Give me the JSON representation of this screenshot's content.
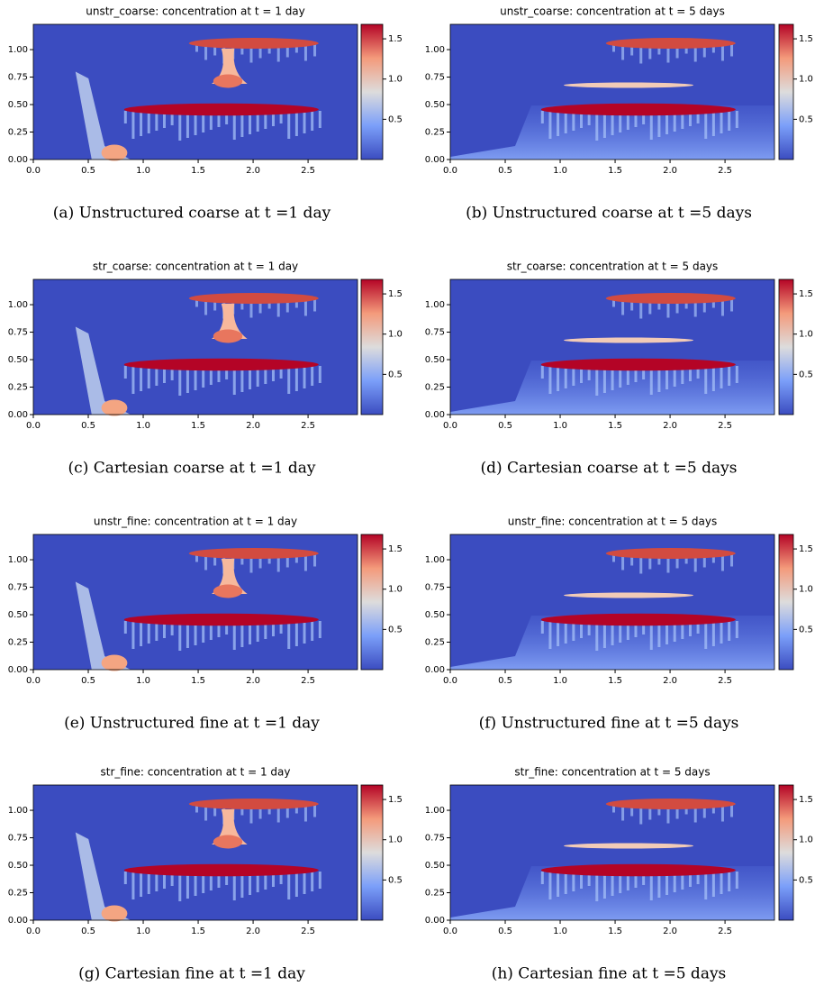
{
  "chart_data": [
    {
      "type": "heatmap",
      "title": "unstr_coarse: concentration at t = 1 day",
      "caption": "(a) Unstructured coarse at t =1 day",
      "xlim": [
        0,
        2.95
      ],
      "ylim": [
        0,
        1.23
      ],
      "clim": [
        0,
        1.68
      ],
      "xticks": [
        {
          "value": 0,
          "label": "0.0"
        },
        {
          "value": 0.5,
          "label": "0.5"
        },
        {
          "value": 1,
          "label": "1.0"
        },
        {
          "value": 1.5,
          "label": "1.5"
        },
        {
          "value": 2,
          "label": "2.0"
        },
        {
          "value": 2.5,
          "label": "2.5"
        }
      ],
      "yticks": [
        {
          "value": 0,
          "label": "0.00"
        },
        {
          "value": 0.25,
          "label": "0.25"
        },
        {
          "value": 0.5,
          "label": "0.50"
        },
        {
          "value": 0.75,
          "label": "0.75"
        },
        {
          "value": 1,
          "label": "1.00"
        }
      ],
      "cticks": [
        0.5,
        {
          "value": 1,
          "label": "1.0"
        },
        1.5
      ]
    },
    {
      "type": "heatmap",
      "title": "unstr_coarse: concentration at t = 5 days",
      "caption": "(b) Unstructured coarse at t =5 days",
      "xlim": [
        0,
        2.95
      ],
      "ylim": [
        0,
        1.23
      ],
      "clim": [
        0,
        1.68
      ],
      "xticks": [
        {
          "value": 0,
          "label": "0.0"
        },
        {
          "value": 0.5,
          "label": "0.5"
        },
        {
          "value": 1,
          "label": "1.0"
        },
        {
          "value": 1.5,
          "label": "1.5"
        },
        {
          "value": 2,
          "label": "2.0"
        },
        {
          "value": 2.5,
          "label": "2.5"
        }
      ],
      "yticks": [
        {
          "value": 0,
          "label": "0.00"
        },
        {
          "value": 0.25,
          "label": "0.25"
        },
        {
          "value": 0.5,
          "label": "0.50"
        },
        {
          "value": 0.75,
          "label": "0.75"
        },
        {
          "value": 1,
          "label": "1.00"
        }
      ],
      "cticks": [
        0.5,
        {
          "value": 1,
          "label": "1.0"
        },
        1.5
      ]
    },
    {
      "type": "heatmap",
      "title": "str_coarse: concentration at t = 1 day",
      "caption": "(c) Cartesian coarse at t =1 day",
      "xlim": [
        0,
        2.95
      ],
      "ylim": [
        0,
        1.23
      ],
      "clim": [
        0,
        1.68
      ],
      "xticks": [
        {
          "value": 0,
          "label": "0.0"
        },
        {
          "value": 0.5,
          "label": "0.5"
        },
        {
          "value": 1,
          "label": "1.0"
        },
        {
          "value": 1.5,
          "label": "1.5"
        },
        {
          "value": 2,
          "label": "2.0"
        },
        {
          "value": 2.5,
          "label": "2.5"
        }
      ],
      "yticks": [
        {
          "value": 0,
          "label": "0.00"
        },
        {
          "value": 0.25,
          "label": "0.25"
        },
        {
          "value": 0.5,
          "label": "0.50"
        },
        {
          "value": 0.75,
          "label": "0.75"
        },
        {
          "value": 1,
          "label": "1.00"
        }
      ],
      "cticks": [
        0.5,
        {
          "value": 1,
          "label": "1.0"
        },
        1.5
      ]
    },
    {
      "type": "heatmap",
      "title": "str_coarse: concentration at t = 5 days",
      "caption": "(d) Cartesian coarse at t =5 days",
      "xlim": [
        0,
        2.95
      ],
      "ylim": [
        0,
        1.23
      ],
      "clim": [
        0,
        1.68
      ],
      "xticks": [
        {
          "value": 0,
          "label": "0.0"
        },
        {
          "value": 0.5,
          "label": "0.5"
        },
        {
          "value": 1,
          "label": "1.0"
        },
        {
          "value": 1.5,
          "label": "1.5"
        },
        {
          "value": 2,
          "label": "2.0"
        },
        {
          "value": 2.5,
          "label": "2.5"
        }
      ],
      "yticks": [
        {
          "value": 0,
          "label": "0.00"
        },
        {
          "value": 0.25,
          "label": "0.25"
        },
        {
          "value": 0.5,
          "label": "0.50"
        },
        {
          "value": 0.75,
          "label": "0.75"
        },
        {
          "value": 1,
          "label": "1.00"
        }
      ],
      "cticks": [
        0.5,
        {
          "value": 1,
          "label": "1.0"
        },
        1.5
      ]
    },
    {
      "type": "heatmap",
      "title": "unstr_fine: concentration at t = 1 day",
      "caption": "(e) Unstructured fine at t =1 day",
      "xlim": [
        0,
        2.95
      ],
      "ylim": [
        0,
        1.23
      ],
      "clim": [
        0,
        1.68
      ],
      "xticks": [
        {
          "value": 0,
          "label": "0.0"
        },
        {
          "value": 0.5,
          "label": "0.5"
        },
        {
          "value": 1,
          "label": "1.0"
        },
        {
          "value": 1.5,
          "label": "1.5"
        },
        {
          "value": 2,
          "label": "2.0"
        },
        {
          "value": 2.5,
          "label": "2.5"
        }
      ],
      "yticks": [
        {
          "value": 0,
          "label": "0.00"
        },
        {
          "value": 0.25,
          "label": "0.25"
        },
        {
          "value": 0.5,
          "label": "0.50"
        },
        {
          "value": 0.75,
          "label": "0.75"
        },
        {
          "value": 1,
          "label": "1.00"
        }
      ],
      "cticks": [
        0.5,
        {
          "value": 1,
          "label": "1.0"
        },
        1.5
      ]
    },
    {
      "type": "heatmap",
      "title": "unstr_fine: concentration at t = 5 days",
      "caption": "(f) Unstructured fine at t =5 days",
      "xlim": [
        0,
        2.95
      ],
      "ylim": [
        0,
        1.23
      ],
      "clim": [
        0,
        1.68
      ],
      "xticks": [
        {
          "value": 0,
          "label": "0.0"
        },
        {
          "value": 0.5,
          "label": "0.5"
        },
        {
          "value": 1,
          "label": "1.0"
        },
        {
          "value": 1.5,
          "label": "1.5"
        },
        {
          "value": 2,
          "label": "2.0"
        },
        {
          "value": 2.5,
          "label": "2.5"
        }
      ],
      "yticks": [
        {
          "value": 0,
          "label": "0.00"
        },
        {
          "value": 0.25,
          "label": "0.25"
        },
        {
          "value": 0.5,
          "label": "0.50"
        },
        {
          "value": 0.75,
          "label": "0.75"
        },
        {
          "value": 1,
          "label": "1.00"
        }
      ],
      "cticks": [
        0.5,
        {
          "value": 1,
          "label": "1.0"
        },
        1.5
      ]
    },
    {
      "type": "heatmap",
      "title": "str_fine: concentration at t = 1 day",
      "caption": "(g) Cartesian fine at t =1 day",
      "xlim": [
        0,
        2.95
      ],
      "ylim": [
        0,
        1.23
      ],
      "clim": [
        0,
        1.68
      ],
      "xticks": [
        {
          "value": 0,
          "label": "0.0"
        },
        {
          "value": 0.5,
          "label": "0.5"
        },
        {
          "value": 1,
          "label": "1.0"
        },
        {
          "value": 1.5,
          "label": "1.5"
        },
        {
          "value": 2,
          "label": "2.0"
        },
        {
          "value": 2.5,
          "label": "2.5"
        }
      ],
      "yticks": [
        {
          "value": 0,
          "label": "0.00"
        },
        {
          "value": 0.25,
          "label": "0.25"
        },
        {
          "value": 0.5,
          "label": "0.50"
        },
        {
          "value": 0.75,
          "label": "0.75"
        },
        {
          "value": 1,
          "label": "1.00"
        }
      ],
      "cticks": [
        0.5,
        {
          "value": 1,
          "label": "1.0"
        },
        1.5
      ]
    },
    {
      "type": "heatmap",
      "title": "str_fine: concentration at t = 5 days",
      "caption": "(h) Cartesian fine at t =5 days",
      "xlim": [
        0,
        2.95
      ],
      "ylim": [
        0,
        1.23
      ],
      "clim": [
        0,
        1.68
      ],
      "xticks": [
        {
          "value": 0,
          "label": "0.0"
        },
        {
          "value": 0.5,
          "label": "0.5"
        },
        {
          "value": 1,
          "label": "1.0"
        },
        {
          "value": 1.5,
          "label": "1.5"
        },
        {
          "value": 2,
          "label": "2.0"
        },
        {
          "value": 2.5,
          "label": "2.5"
        }
      ],
      "yticks": [
        {
          "value": 0,
          "label": "0.00"
        },
        {
          "value": 0.25,
          "label": "0.25"
        },
        {
          "value": 0.5,
          "label": "0.50"
        },
        {
          "value": 0.75,
          "label": "0.75"
        },
        {
          "value": 1,
          "label": "1.00"
        }
      ],
      "cticks": [
        0.5,
        {
          "value": 1,
          "label": "1.0"
        },
        1.5
      ]
    }
  ]
}
